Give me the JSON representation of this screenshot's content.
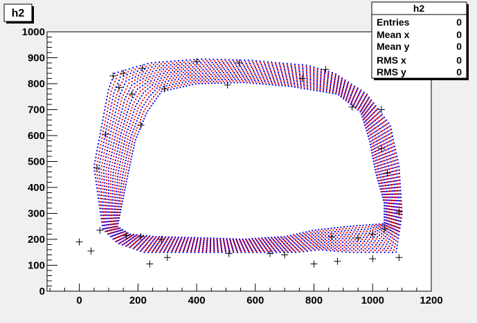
{
  "chart_data": {
    "type": "scatter",
    "title": "h2",
    "xlim": [
      -110,
      1200
    ],
    "ylim": [
      0,
      1000
    ],
    "x_ticks": [
      0,
      200,
      400,
      600,
      800,
      1000,
      1200
    ],
    "y_ticks": [
      0,
      100,
      200,
      300,
      400,
      500,
      600,
      700,
      800,
      900,
      1000
    ],
    "grid": false,
    "series": [
      {
        "color": "#0000ee",
        "marker": "dot"
      },
      {
        "color": "#ee0000",
        "marker": "dot"
      },
      {
        "color": "#000000",
        "marker": "cross",
        "points": [
          [
            0,
            190
          ],
          [
            40,
            155
          ],
          [
            70,
            235
          ],
          [
            90,
            605
          ],
          [
            60,
            475
          ],
          [
            115,
            830
          ],
          [
            150,
            840
          ],
          [
            215,
            860
          ],
          [
            135,
            785
          ],
          [
            180,
            760
          ],
          [
            210,
            640
          ],
          [
            290,
            780
          ],
          [
            400,
            885
          ],
          [
            545,
            880
          ],
          [
            505,
            795
          ],
          [
            760,
            820
          ],
          [
            840,
            855
          ],
          [
            930,
            710
          ],
          [
            1030,
            700
          ],
          [
            1030,
            550
          ],
          [
            1050,
            455
          ],
          [
            1090,
            305
          ],
          [
            1040,
            240
          ],
          [
            1090,
            130
          ],
          [
            1000,
            125
          ],
          [
            880,
            115
          ],
          [
            800,
            105
          ],
          [
            700,
            140
          ],
          [
            650,
            145
          ],
          [
            510,
            145
          ],
          [
            300,
            130
          ],
          [
            240,
            105
          ],
          [
            210,
            210
          ],
          [
            280,
            200
          ],
          [
            160,
            215
          ],
          [
            950,
            205
          ],
          [
            860,
            210
          ],
          [
            1000,
            220
          ]
        ]
      }
    ],
    "band": {
      "outer": [
        [
          80,
          240
        ],
        [
          50,
          480
        ],
        [
          100,
          780
        ],
        [
          120,
          840
        ],
        [
          240,
          880
        ],
        [
          420,
          895
        ],
        [
          580,
          890
        ],
        [
          780,
          870
        ],
        [
          870,
          840
        ],
        [
          980,
          760
        ],
        [
          1060,
          640
        ],
        [
          1090,
          480
        ],
        [
          1100,
          300
        ],
        [
          1080,
          150
        ],
        [
          920,
          150
        ],
        [
          820,
          160
        ],
        [
          740,
          150
        ],
        [
          560,
          150
        ],
        [
          370,
          150
        ],
        [
          220,
          150
        ],
        [
          130,
          185
        ]
      ],
      "inner": [
        [
          130,
          250
        ],
        [
          160,
          420
        ],
        [
          190,
          580
        ],
        [
          230,
          690
        ],
        [
          280,
          770
        ],
        [
          400,
          800
        ],
        [
          560,
          805
        ],
        [
          720,
          790
        ],
        [
          880,
          760
        ],
        [
          960,
          690
        ],
        [
          990,
          580
        ],
        [
          1010,
          460
        ],
        [
          1040,
          340
        ],
        [
          1040,
          260
        ],
        [
          920,
          250
        ],
        [
          800,
          235
        ],
        [
          700,
          210
        ],
        [
          560,
          200
        ],
        [
          420,
          205
        ],
        [
          260,
          210
        ],
        [
          170,
          220
        ]
      ]
    }
  },
  "stats_box": {
    "title": "h2",
    "rows": [
      {
        "label": "Entries",
        "value": "0"
      },
      {
        "label": "Mean x",
        "value": "0"
      },
      {
        "label": "Mean y",
        "value": "0"
      },
      {
        "label": "RMS x",
        "value": "0"
      },
      {
        "label": "RMS y",
        "value": "0"
      }
    ]
  },
  "title_box": {
    "label": "h2"
  }
}
